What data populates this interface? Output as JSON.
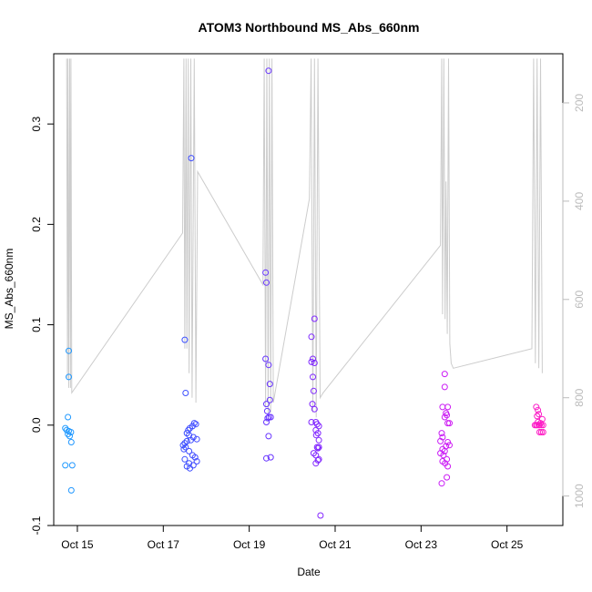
{
  "chart_data": {
    "type": "scatter",
    "title": "ATOM3 Northbound MS_Abs_660nm",
    "xlabel": "Date",
    "ylabel": "MS_Abs_660nm",
    "x_ticks": [
      {
        "day": 15,
        "label": "Oct 15"
      },
      {
        "day": 17,
        "label": "Oct 17"
      },
      {
        "day": 19,
        "label": "Oct 19"
      },
      {
        "day": 21,
        "label": "Oct 21"
      },
      {
        "day": 23,
        "label": "Oct 23"
      },
      {
        "day": 25,
        "label": "Oct 25"
      }
    ],
    "xlim": [
      14.45,
      26.3
    ],
    "ylim": [
      -0.1,
      0.37
    ],
    "y_ticks": [
      -0.1,
      0.0,
      0.1,
      0.2,
      0.3
    ],
    "y_tick_labels": [
      "-0.1",
      "0.0",
      "0.1",
      "0.2",
      "0.3"
    ],
    "right_axis": {
      "ylim_reversed": [
        100,
        1060
      ],
      "ticks": [
        200,
        400,
        600,
        800,
        1000
      ],
      "tick_labels": [
        "200",
        "400",
        "600",
        "800",
        "1000"
      ],
      "color": "#bbbbbb"
    },
    "point_color_gradient": [
      "#1e9bff",
      "#3c50ff",
      "#7a28ff",
      "#c01cff",
      "#ff1cc4"
    ],
    "series": [
      {
        "values": [
          {
            "x": 14.8,
            "y": 0.074
          },
          {
            "x": 14.8,
            "y": 0.048
          },
          {
            "x": 14.78,
            "y": 0.008
          },
          {
            "x": 14.72,
            "y": -0.003
          },
          {
            "x": 14.75,
            "y": -0.005
          },
          {
            "x": 14.8,
            "y": -0.006
          },
          {
            "x": 14.85,
            "y": -0.007
          },
          {
            "x": 14.78,
            "y": -0.009
          },
          {
            "x": 14.82,
            "y": -0.011
          },
          {
            "x": 14.86,
            "y": -0.017
          },
          {
            "x": 14.72,
            "y": -0.04
          },
          {
            "x": 14.88,
            "y": -0.04
          },
          {
            "x": 14.86,
            "y": -0.065
          },
          {
            "x": 17.65,
            "y": 0.266
          },
          {
            "x": 17.5,
            "y": 0.085
          },
          {
            "x": 17.52,
            "y": 0.032
          },
          {
            "x": 17.72,
            "y": 0.002
          },
          {
            "x": 17.76,
            "y": 0.001
          },
          {
            "x": 17.68,
            "y": -0.001
          },
          {
            "x": 17.62,
            "y": -0.003
          },
          {
            "x": 17.58,
            "y": -0.005
          },
          {
            "x": 17.55,
            "y": -0.008
          },
          {
            "x": 17.6,
            "y": -0.01
          },
          {
            "x": 17.7,
            "y": -0.012
          },
          {
            "x": 17.78,
            "y": -0.014
          },
          {
            "x": 17.64,
            "y": -0.015
          },
          {
            "x": 17.55,
            "y": -0.016
          },
          {
            "x": 17.5,
            "y": -0.018
          },
          {
            "x": 17.46,
            "y": -0.02
          },
          {
            "x": 17.52,
            "y": -0.022
          },
          {
            "x": 17.48,
            "y": -0.024
          },
          {
            "x": 17.6,
            "y": -0.026
          },
          {
            "x": 17.68,
            "y": -0.03
          },
          {
            "x": 17.74,
            "y": -0.032
          },
          {
            "x": 17.5,
            "y": -0.034
          },
          {
            "x": 17.78,
            "y": -0.036
          },
          {
            "x": 17.6,
            "y": -0.038
          },
          {
            "x": 17.7,
            "y": -0.04
          },
          {
            "x": 17.55,
            "y": -0.041
          },
          {
            "x": 17.62,
            "y": -0.043
          },
          {
            "x": 19.45,
            "y": 0.353
          },
          {
            "x": 19.38,
            "y": 0.152
          },
          {
            "x": 19.4,
            "y": 0.142
          },
          {
            "x": 19.38,
            "y": 0.066
          },
          {
            "x": 19.45,
            "y": 0.06
          },
          {
            "x": 19.48,
            "y": 0.041
          },
          {
            "x": 19.48,
            "y": 0.025
          },
          {
            "x": 19.4,
            "y": 0.021
          },
          {
            "x": 19.42,
            "y": 0.014
          },
          {
            "x": 19.46,
            "y": 0.008
          },
          {
            "x": 19.5,
            "y": 0.008
          },
          {
            "x": 19.43,
            "y": 0.007
          },
          {
            "x": 19.4,
            "y": 0.003
          },
          {
            "x": 19.45,
            "y": -0.011
          },
          {
            "x": 19.4,
            "y": -0.033
          },
          {
            "x": 19.5,
            "y": -0.032
          },
          {
            "x": 20.45,
            "y": 0.088
          },
          {
            "x": 20.52,
            "y": 0.106
          },
          {
            "x": 20.48,
            "y": 0.066
          },
          {
            "x": 20.45,
            "y": 0.063
          },
          {
            "x": 20.52,
            "y": 0.062
          },
          {
            "x": 20.48,
            "y": 0.048
          },
          {
            "x": 20.5,
            "y": 0.034
          },
          {
            "x": 20.47,
            "y": 0.021
          },
          {
            "x": 20.52,
            "y": 0.016
          },
          {
            "x": 20.45,
            "y": 0.003
          },
          {
            "x": 20.55,
            "y": 0.003
          },
          {
            "x": 20.58,
            "y": 0.001
          },
          {
            "x": 20.62,
            "y": -0.001
          },
          {
            "x": 20.55,
            "y": -0.005
          },
          {
            "x": 20.6,
            "y": -0.008
          },
          {
            "x": 20.56,
            "y": -0.01
          },
          {
            "x": 20.62,
            "y": -0.015
          },
          {
            "x": 20.58,
            "y": -0.022
          },
          {
            "x": 20.62,
            "y": -0.022
          },
          {
            "x": 20.6,
            "y": -0.023
          },
          {
            "x": 20.5,
            "y": -0.028
          },
          {
            "x": 20.55,
            "y": -0.03
          },
          {
            "x": 20.62,
            "y": -0.034
          },
          {
            "x": 20.6,
            "y": -0.035
          },
          {
            "x": 20.55,
            "y": -0.038
          },
          {
            "x": 20.66,
            "y": -0.09
          },
          {
            "x": 23.55,
            "y": 0.051
          },
          {
            "x": 23.55,
            "y": 0.038
          },
          {
            "x": 23.5,
            "y": 0.018
          },
          {
            "x": 23.62,
            "y": 0.018
          },
          {
            "x": 23.58,
            "y": 0.012
          },
          {
            "x": 23.6,
            "y": 0.01
          },
          {
            "x": 23.55,
            "y": 0.008
          },
          {
            "x": 23.62,
            "y": 0.002
          },
          {
            "x": 23.66,
            "y": 0.002
          },
          {
            "x": 23.48,
            "y": -0.008
          },
          {
            "x": 23.5,
            "y": -0.012
          },
          {
            "x": 23.45,
            "y": -0.016
          },
          {
            "x": 23.62,
            "y": -0.017
          },
          {
            "x": 23.66,
            "y": -0.02
          },
          {
            "x": 23.58,
            "y": -0.021
          },
          {
            "x": 23.5,
            "y": -0.024
          },
          {
            "x": 23.55,
            "y": -0.026
          },
          {
            "x": 23.45,
            "y": -0.028
          },
          {
            "x": 23.52,
            "y": -0.03
          },
          {
            "x": 23.6,
            "y": -0.034
          },
          {
            "x": 23.5,
            "y": -0.036
          },
          {
            "x": 23.56,
            "y": -0.038
          },
          {
            "x": 23.62,
            "y": -0.041
          },
          {
            "x": 23.6,
            "y": -0.052
          },
          {
            "x": 23.48,
            "y": -0.058
          },
          {
            "x": 25.68,
            "y": 0.018
          },
          {
            "x": 25.72,
            "y": 0.015
          },
          {
            "x": 25.74,
            "y": 0.011
          },
          {
            "x": 25.7,
            "y": 0.009
          },
          {
            "x": 25.82,
            "y": 0.006
          },
          {
            "x": 25.72,
            "y": 0.003
          },
          {
            "x": 25.78,
            "y": 0.002
          },
          {
            "x": 25.65,
            "y": 0.0
          },
          {
            "x": 25.68,
            "y": 0.0
          },
          {
            "x": 25.7,
            "y": 0.0
          },
          {
            "x": 25.74,
            "y": 0.0
          },
          {
            "x": 25.76,
            "y": 0.0
          },
          {
            "x": 25.8,
            "y": 0.0
          },
          {
            "x": 25.84,
            "y": 0.0
          },
          {
            "x": 25.76,
            "y": -0.007
          },
          {
            "x": 25.8,
            "y": -0.007
          },
          {
            "x": 25.84,
            "y": -0.007
          }
        ]
      },
      {
        "axis": "right",
        "color": "#cccccc",
        "values": [
          {
            "x": 14.75,
            "y": 110
          },
          {
            "x": 14.77,
            "y": 760
          },
          {
            "x": 14.78,
            "y": 110
          },
          {
            "x": 14.8,
            "y": 780
          },
          {
            "x": 14.82,
            "y": 110
          },
          {
            "x": 14.84,
            "y": 780
          },
          {
            "x": 14.85,
            "y": 110
          },
          {
            "x": 14.87,
            "y": 790
          },
          {
            "x": 17.45,
            "y": 465
          },
          {
            "x": 17.48,
            "y": 110
          },
          {
            "x": 17.5,
            "y": 700
          },
          {
            "x": 17.53,
            "y": 110
          },
          {
            "x": 17.55,
            "y": 700
          },
          {
            "x": 17.58,
            "y": 110
          },
          {
            "x": 17.6,
            "y": 750
          },
          {
            "x": 17.64,
            "y": 110
          },
          {
            "x": 17.67,
            "y": 800
          },
          {
            "x": 17.72,
            "y": 110
          },
          {
            "x": 17.76,
            "y": 810
          },
          {
            "x": 17.8,
            "y": 340
          },
          {
            "x": 19.32,
            "y": 570
          },
          {
            "x": 19.35,
            "y": 110
          },
          {
            "x": 19.38,
            "y": 820
          },
          {
            "x": 19.41,
            "y": 110
          },
          {
            "x": 19.44,
            "y": 830
          },
          {
            "x": 19.47,
            "y": 110
          },
          {
            "x": 19.5,
            "y": 830
          },
          {
            "x": 19.53,
            "y": 110
          },
          {
            "x": 19.56,
            "y": 810
          },
          {
            "x": 20.4,
            "y": 395
          },
          {
            "x": 20.44,
            "y": 110
          },
          {
            "x": 20.48,
            "y": 830
          },
          {
            "x": 20.52,
            "y": 110
          },
          {
            "x": 20.56,
            "y": 840
          },
          {
            "x": 20.6,
            "y": 110
          },
          {
            "x": 20.65,
            "y": 800
          },
          {
            "x": 20.72,
            "y": 790
          },
          {
            "x": 23.45,
            "y": 490
          },
          {
            "x": 23.48,
            "y": 110
          },
          {
            "x": 23.5,
            "y": 630
          },
          {
            "x": 23.53,
            "y": 110
          },
          {
            "x": 23.56,
            "y": 640
          },
          {
            "x": 23.58,
            "y": 360
          },
          {
            "x": 23.61,
            "y": 670
          },
          {
            "x": 23.64,
            "y": 110
          },
          {
            "x": 23.67,
            "y": 690
          },
          {
            "x": 23.7,
            "y": 730
          },
          {
            "x": 23.75,
            "y": 740
          },
          {
            "x": 25.58,
            "y": 700
          },
          {
            "x": 25.62,
            "y": 110
          },
          {
            "x": 25.66,
            "y": 730
          },
          {
            "x": 25.7,
            "y": 110
          },
          {
            "x": 25.74,
            "y": 740
          },
          {
            "x": 25.78,
            "y": 110
          },
          {
            "x": 25.82,
            "y": 750
          }
        ]
      }
    ]
  }
}
